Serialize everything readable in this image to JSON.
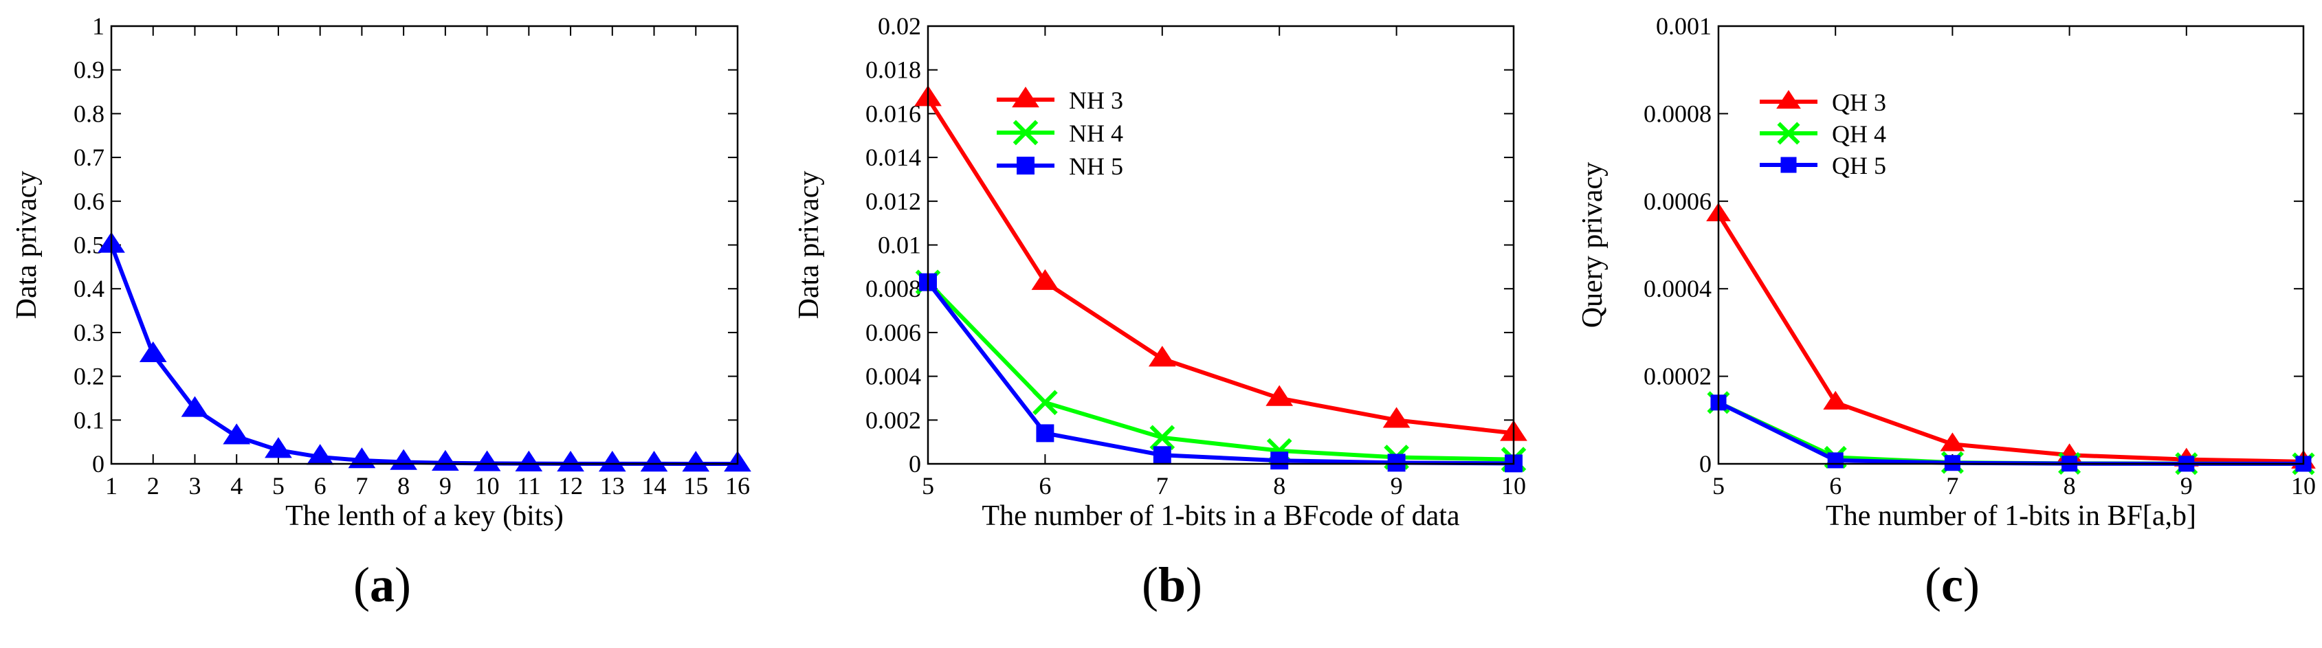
{
  "chart_data": [
    {
      "id": "a",
      "type": "line",
      "caption": "(a)",
      "caption_letter": "a",
      "xlabel": "The lenth of a key (bits)",
      "ylabel": "Data privacy",
      "xlim": [
        1,
        16
      ],
      "ylim": [
        0,
        1
      ],
      "xticks": [
        1,
        2,
        3,
        4,
        5,
        6,
        7,
        8,
        9,
        10,
        11,
        12,
        13,
        14,
        15,
        16
      ],
      "yticks": [
        0,
        0.1,
        0.2,
        0.3,
        0.4,
        0.5,
        0.6,
        0.7,
        0.8,
        0.9,
        1
      ],
      "ytick_labels": [
        "0",
        "0.1",
        "0.2",
        "0.3",
        "0.4",
        "0.5",
        "0.6",
        "0.7",
        "0.8",
        "0.9",
        "1"
      ],
      "legend": false,
      "series": [
        {
          "name": "Data privacy",
          "color": "#0000ff",
          "marker": "triangle",
          "x": [
            1,
            2,
            3,
            4,
            5,
            6,
            7,
            8,
            9,
            10,
            11,
            12,
            13,
            14,
            15,
            16
          ],
          "values": [
            0.5,
            0.25,
            0.125,
            0.0625,
            0.03125,
            0.0156,
            0.0078,
            0.0039,
            0.002,
            0.001,
            0.0005,
            0.0002,
            0.0001,
            0.0001,
            0.0,
            0.0
          ]
        }
      ]
    },
    {
      "id": "b",
      "type": "line",
      "caption": "(b)",
      "caption_letter": "b",
      "xlabel": "The number of 1-bits in a BFcode of data",
      "ylabel": "Data privacy",
      "xlim": [
        5,
        10
      ],
      "ylim": [
        0,
        0.02
      ],
      "xticks": [
        5,
        6,
        7,
        8,
        9,
        10
      ],
      "yticks": [
        0,
        0.002,
        0.004,
        0.006,
        0.008,
        0.01,
        0.012,
        0.014,
        0.016,
        0.018,
        0.02
      ],
      "ytick_labels": [
        "0",
        "0.002",
        "0.004",
        "0.006",
        "0.008",
        "0.01",
        "0.012",
        "0.014",
        "0.016",
        "0.018",
        "0.02"
      ],
      "legend": true,
      "legend_position": "top-left",
      "series": [
        {
          "name": "NH 3",
          "color": "#ff0000",
          "marker": "triangle",
          "x": [
            5,
            6,
            7,
            8,
            9,
            10
          ],
          "values": [
            0.0167,
            0.0083,
            0.0048,
            0.003,
            0.002,
            0.0014
          ]
        },
        {
          "name": "NH 4",
          "color": "#00ff00",
          "marker": "x",
          "x": [
            5,
            6,
            7,
            8,
            9,
            10
          ],
          "values": [
            0.0083,
            0.0028,
            0.0012,
            0.0006,
            0.0003,
            0.0002
          ]
        },
        {
          "name": "NH 5",
          "color": "#0000ff",
          "marker": "square",
          "x": [
            5,
            6,
            7,
            8,
            9,
            10
          ],
          "values": [
            0.0083,
            0.0014,
            0.0004,
            0.00015,
            5e-05,
            2e-05
          ]
        }
      ]
    },
    {
      "id": "c",
      "type": "line",
      "caption": "(c)",
      "caption_letter": "c",
      "xlabel": "The number of 1-bits in BF[a,b]",
      "ylabel": "Query privacy",
      "xlim": [
        5,
        10
      ],
      "ylim": [
        0,
        0.001
      ],
      "xticks": [
        5,
        6,
        7,
        8,
        9,
        10
      ],
      "yticks": [
        0,
        0.0002,
        0.0004,
        0.0006,
        0.0008,
        0.001
      ],
      "ytick_labels": [
        "0",
        "0.0002",
        "0.0004",
        "0.0006",
        "0.0008",
        "0.001"
      ],
      "legend": true,
      "legend_position": "top-left",
      "series": [
        {
          "name": "QH 3",
          "color": "#ff0000",
          "marker": "triangle",
          "x": [
            5,
            6,
            7,
            8,
            9,
            10
          ],
          "values": [
            0.00057,
            0.00014,
            4.5e-05,
            2e-05,
            1e-05,
            5e-06
          ]
        },
        {
          "name": "QH 4",
          "color": "#00ff00",
          "marker": "x",
          "x": [
            5,
            6,
            7,
            8,
            9,
            10
          ],
          "values": [
            0.00014,
            1.5e-05,
            3e-06,
            1e-06,
            5e-07,
            2e-07
          ]
        },
        {
          "name": "QH 5",
          "color": "#0000ff",
          "marker": "square",
          "x": [
            5,
            6,
            7,
            8,
            9,
            10
          ],
          "values": [
            0.00014,
            8e-06,
            2e-06,
            5e-07,
            2e-07,
            1e-07
          ]
        }
      ]
    }
  ]
}
